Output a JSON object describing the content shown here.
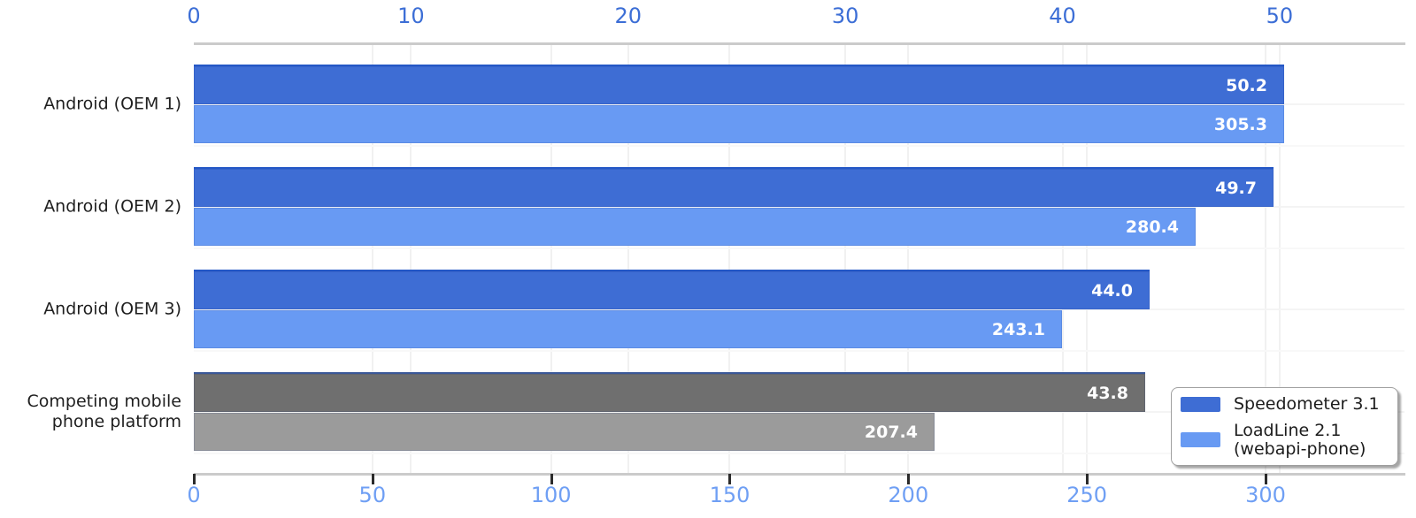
{
  "chart_data": {
    "type": "bar",
    "orientation": "horizontal",
    "title": "",
    "categories": [
      "Android (OEM 1)",
      "Android (OEM 2)",
      "Android (OEM 3)",
      "Competing mobile\nphone platform"
    ],
    "series": [
      {
        "name": "Speedometer 3.1",
        "axis": "top",
        "values": [
          50.2,
          49.7,
          44.0,
          43.8
        ],
        "value_labels": [
          "50.2",
          "49.7",
          "44.0",
          "43.8"
        ],
        "colors": [
          "#3e6dd4",
          "#3e6dd4",
          "#3e6dd4",
          "#6f6f6f"
        ]
      },
      {
        "name": "LoadLine 2.1 (webapi-phone)",
        "axis": "bottom",
        "values": [
          305.3,
          280.4,
          243.1,
          207.4
        ],
        "value_labels": [
          "305.3",
          "280.4",
          "243.1",
          "207.4"
        ],
        "colors": [
          "#689af3",
          "#689af3",
          "#689af3",
          "#9b9b9b"
        ]
      }
    ],
    "top_axis": {
      "ticks": [
        0,
        10,
        20,
        30,
        40,
        50
      ],
      "tick_labels": [
        "0",
        "10",
        "20",
        "30",
        "40",
        "50"
      ],
      "range": [
        0,
        55.75
      ],
      "label_color": "#3c6ed6"
    },
    "bottom_axis": {
      "ticks": [
        0,
        50,
        100,
        150,
        200,
        250,
        300
      ],
      "tick_labels": [
        "0",
        "50",
        "100",
        "150",
        "200",
        "250",
        "300"
      ],
      "range": [
        0,
        338.9
      ],
      "label_color": "#6f9ff4"
    },
    "grid": true,
    "value_label_color": "#ffffff",
    "legend": {
      "position": "lower right",
      "items": [
        {
          "label": "Speedometer 3.1",
          "color": "#3e6dd4"
        },
        {
          "label": "LoadLine 2.1\n(webapi-phone)",
          "color": "#689af3"
        }
      ]
    }
  }
}
